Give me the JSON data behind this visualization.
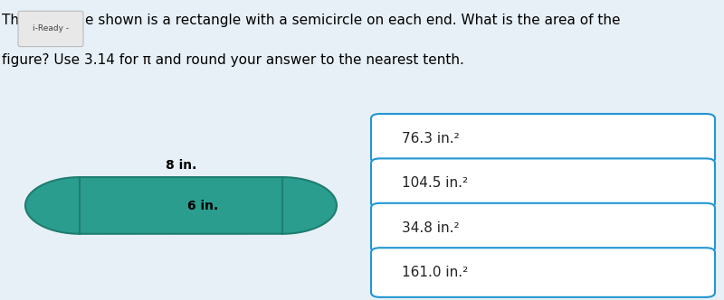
{
  "header_bg": "#cfe2f0",
  "body_bg": "#e8f0f7",
  "shape_color": "#2a9d8f",
  "shape_outline": "#1e7d70",
  "dim_label_8": "8 in.",
  "dim_label_6": "6 in.",
  "options": [
    "76.3 in.²",
    "104.5 in.²",
    "34.8 in.²",
    "161.0 in.²"
  ],
  "option_bg": "#ffffff",
  "panel_bg": "#2196d3",
  "label_fontsize": 10,
  "option_fontsize": 11,
  "question_fontsize": 11,
  "iready_label": "i-Ready -",
  "iready_bg": "#e8e8e8",
  "question_line1": "Th",
  "question_line1b": "e shown is a rectangle with a semicircle on each end. What is the area of the",
  "question_line2": "figure? Use 3.14 for π and round your answer to the nearest tenth."
}
